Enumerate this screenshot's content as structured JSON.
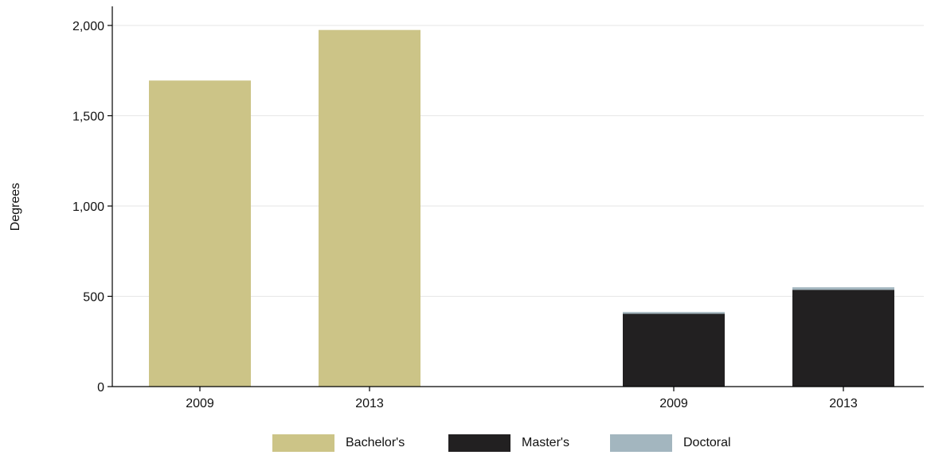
{
  "chart_data": {
    "type": "bar",
    "stacked": true,
    "ylabel": "Degrees",
    "xlabel": "",
    "ylim": [
      0,
      2100
    ],
    "yticks": [
      0,
      500,
      1000,
      1500,
      2000
    ],
    "ytick_labels": [
      "0",
      "500",
      "1,000",
      "1,500",
      "2,000"
    ],
    "grid": true,
    "legend_position": "bottom",
    "groups": [
      {
        "categories": [
          "2009",
          "2013"
        ],
        "series": [
          {
            "name": "Bachelor's",
            "values": [
              1695,
              1975
            ]
          }
        ]
      },
      {
        "categories": [
          "2009",
          "2013"
        ],
        "series": [
          {
            "name": "Master's",
            "values": [
              403,
              536
            ]
          },
          {
            "name": "Doctoral",
            "values": [
              10,
              14
            ]
          }
        ]
      }
    ],
    "legend": [
      {
        "name": "Bachelor's",
        "color": "#ccc487"
      },
      {
        "name": "Master's",
        "color": "#222021"
      },
      {
        "name": "Doctoral",
        "color": "#a3b6bf"
      }
    ]
  }
}
